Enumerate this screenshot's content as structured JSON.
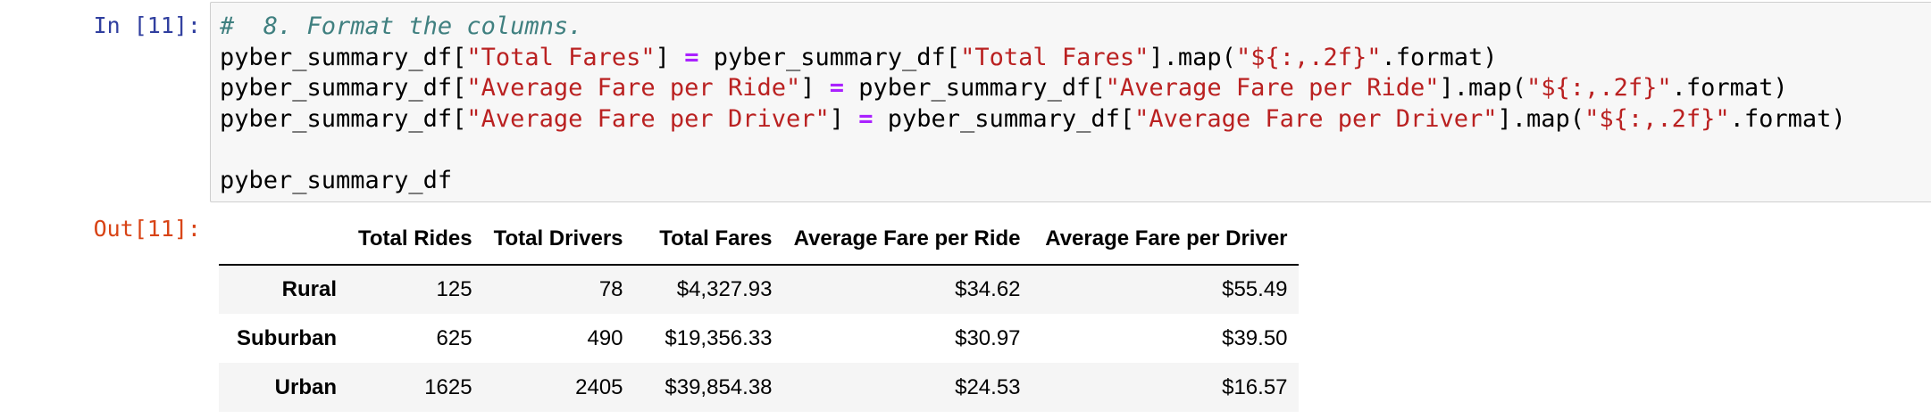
{
  "cell": {
    "input_prompt": "In [11]:",
    "output_prompt": "Out[11]:",
    "code": {
      "comment": "#  8. Format the columns.",
      "line1": {
        "a": "pyber_summary_df[",
        "s1": "\"Total Fares\"",
        "b": "] ",
        "op": "=",
        "c": " pyber_summary_df[",
        "s2": "\"Total Fares\"",
        "d": "].map(",
        "s3": "\"${:,.2f}\"",
        "e": ".format)"
      },
      "line2": {
        "a": "pyber_summary_df[",
        "s1": "\"Average Fare per Ride\"",
        "b": "] ",
        "op": "=",
        "c": " pyber_summary_df[",
        "s2": "\"Average Fare per Ride\"",
        "d": "].map(",
        "s3": "\"${:,.2f}\"",
        "e": ".format)"
      },
      "line3": {
        "a": "pyber_summary_df[",
        "s1": "\"Average Fare per Driver\"",
        "b": "] ",
        "op": "=",
        "c": " pyber_summary_df[",
        "s2": "\"Average Fare per Driver\"",
        "d": "].map(",
        "s3": "\"${:,.2f}\"",
        "e": ".format)"
      },
      "line5": "pyber_summary_df"
    }
  },
  "table": {
    "columns": [
      "",
      "Total Rides",
      "Total Drivers",
      "Total Fares",
      "Average Fare per Ride",
      "Average Fare per Driver"
    ],
    "rows": [
      {
        "index": "Rural",
        "cells": [
          "125",
          "78",
          "$4,327.93",
          "$34.62",
          "$55.49"
        ]
      },
      {
        "index": "Suburban",
        "cells": [
          "625",
          "490",
          "$19,356.33",
          "$30.97",
          "$39.50"
        ]
      },
      {
        "index": "Urban",
        "cells": [
          "1625",
          "2405",
          "$39,854.38",
          "$24.53",
          "$16.57"
        ]
      }
    ]
  },
  "colors": {
    "input_prompt": "#303f9f",
    "output_prompt": "#d84315",
    "comment": "#408080",
    "string": "#ba2121",
    "operator": "#aa22ff",
    "input_background": "#f7f7f7",
    "row_stripe": "#f5f5f5"
  }
}
